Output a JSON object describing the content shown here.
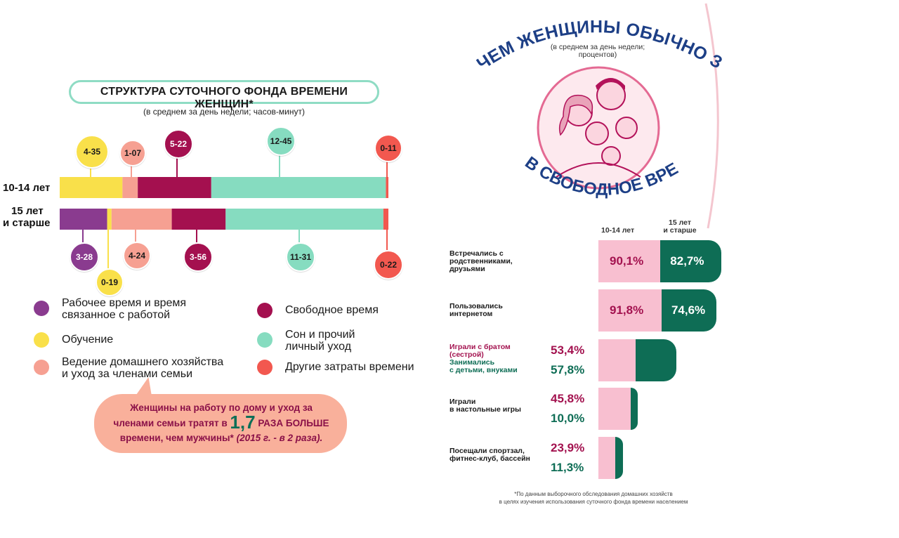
{
  "left": {
    "title": "СТРУКТУРА СУТОЧНОГО ФОНДА ВРЕМЕНИ ЖЕНЩИН*",
    "subtitle": "(в среднем за день недели; часов-минут)",
    "rows": [
      "10-14 лет",
      "15 лет",
      "и старше"
    ],
    "bubble_line1": "Женщины на работу по дому и уход за",
    "bubble_line2_a": "членами семьи тратят в",
    "bubble_big": "1,7",
    "bubble_line2_b": "РАЗА БОЛЬШЕ",
    "bubble_line3_a": "времени, чем мужчины*",
    "bubble_line3_b": "(2015 г. - в 2 раза)."
  },
  "right": {
    "arc_title": "ЧЕМ ЖЕНЩИНЫ ОБЫЧНО ЗАНИМАЛИСЬ",
    "arc_title2": "В СВОБОДНОЕ ВРЕМЯ?*",
    "subtitle_line1": "(в среднем за день недели;",
    "subtitle_line2": "процентов)",
    "col1": "10-14 лет",
    "col2_line1": "15 лет",
    "col2_line2": "и старше",
    "footnote_line1": "*По данным выборочного обследования домашних хозяйств",
    "footnote_line2": "в целях изучения использования суточного фонда времени населением"
  },
  "chart_data": [
    {
      "type": "bar",
      "title": "СТРУКТУРА СУТОЧНОГО ФОНДА ВРЕМЕНИ ЖЕНЩИН*",
      "subtitle": "(в среднем за день недели; часов-минут)",
      "stacked": true,
      "orientation": "horizontal",
      "categories": [
        "10-14 лет",
        "15 лет и старше"
      ],
      "series": [
        {
          "name": "Рабочее время и время связанное с работой",
          "color": "#8a3b8f",
          "values": [
            "0-00",
            "3-28"
          ]
        },
        {
          "name": "Обучение",
          "color": "#f9e04a",
          "values": [
            "4-35",
            "0-19"
          ]
        },
        {
          "name": "Ведение домашнего хозяйства и уход за членами семьи",
          "color": "#f6a092",
          "values": [
            "1-07",
            "4-24"
          ]
        },
        {
          "name": "Свободное время",
          "color": "#a4104f",
          "values": [
            "5-22",
            "3-56"
          ]
        },
        {
          "name": "Сон и прочий личный уход",
          "color": "#86dcc0",
          "values": [
            "12-45",
            "11-31"
          ]
        },
        {
          "name": "Другие затраты времени",
          "color": "#f2584f",
          "values": [
            "0-11",
            "0-22"
          ]
        }
      ],
      "legend_position": "bottom"
    },
    {
      "type": "bar",
      "title": "ЧЕМ ЖЕНЩИНЫ ОБЫЧНО ЗАНИМАЛИСЬ В СВОБОДНОЕ ВРЕМЯ?*",
      "subtitle": "(в среднем за день недели; процентов)",
      "categories": [
        "Встречались с родственниками, друзьями",
        "Пользовались интернетом",
        "Играли с братом (сестрой) / Занимались с детьми, внуками",
        "Играли в настольные игры",
        "Посещали спортзал, фитнес-клуб, бассейн"
      ],
      "series": [
        {
          "name": "10-14 лет",
          "color": "#f8bfd0",
          "text_color": "#a3124f",
          "values": [
            90.1,
            91.8,
            53.4,
            45.8,
            23.9
          ]
        },
        {
          "name": "15 лет и старше",
          "color": "#0e6d55",
          "text_color": "#0e6d55",
          "values": [
            82.7,
            74.6,
            57.8,
            10.0,
            11.3
          ]
        }
      ]
    }
  ],
  "pins_left": [
    {
      "label": "4-35",
      "color": "#f9e04a"
    },
    {
      "label": "1-07",
      "color": "#f6a092"
    },
    {
      "label": "5-22",
      "color": "#a4104f"
    },
    {
      "label": "12-45",
      "color": "#86dcc0"
    },
    {
      "label": "0-11",
      "color": "#f2584f"
    },
    {
      "label": "3-28",
      "color": "#8a3b8f"
    },
    {
      "label": "0-19",
      "color": "#f9e04a"
    },
    {
      "label": "4-24",
      "color": "#f6a092"
    },
    {
      "label": "3-56",
      "color": "#a4104f"
    },
    {
      "label": "11-31",
      "color": "#86dcc0"
    },
    {
      "label": "0-22",
      "color": "#f2584f"
    }
  ],
  "legend": [
    {
      "line1": "Рабочее время и время",
      "line2": "связанное с работой",
      "color": "#8a3b8f"
    },
    {
      "line1": "Обучение",
      "line2": "",
      "color": "#f9e04a"
    },
    {
      "line1": "Ведение домашнего хозяйства",
      "line2": "и уход за членами семьи",
      "color": "#f6a092"
    },
    {
      "line1": "Свободное время",
      "line2": "",
      "color": "#a4104f"
    },
    {
      "line1": "Сон и прочий",
      "line2": "личный уход",
      "color": "#86dcc0"
    },
    {
      "line1": "Другие затраты времени",
      "line2": "",
      "color": "#f2584f"
    }
  ],
  "activities": [
    {
      "line1": "Встречались с",
      "line2": "родственниками,",
      "line3": "друзьями",
      "v1": "90,1%",
      "v2": "82,7%"
    },
    {
      "line1": "Пользовались",
      "line2": "интернетом",
      "line3": "",
      "v1": "91,8%",
      "v2": "74,6%"
    },
    {
      "line1": "Играли с братом",
      "line2": "(сестрой)",
      "line3": "",
      "line4": "Занимались",
      "line5": "с детьми, внуками",
      "v1": "53,4%",
      "v2": "57,8%"
    },
    {
      "line1": "Играли",
      "line2": "в настольные игры",
      "line3": "",
      "v1": "45,8%",
      "v2": "10,0%"
    },
    {
      "line1": "Посещали спортзал,",
      "line2": "фитнес-клуб, бассейн",
      "line3": "",
      "v1": "23,9%",
      "v2": "11,3%"
    }
  ]
}
